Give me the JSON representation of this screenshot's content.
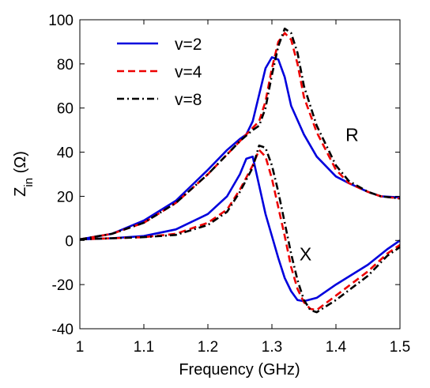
{
  "chart_data": {
    "type": "line",
    "xlabel": "Frequency (GHz)",
    "ylabel_main": "Z",
    "ylabel_sub": "in",
    "ylabel_unit": " (Ω)",
    "xlim": [
      1,
      1.5
    ],
    "ylim": [
      -40,
      100
    ],
    "xticks": [
      1,
      1.1,
      1.2,
      1.3,
      1.4,
      1.5
    ],
    "xtick_labels": [
      "1",
      "1.1",
      "1.2",
      "1.3",
      "1.4",
      "1.5"
    ],
    "yticks": [
      -40,
      -20,
      0,
      20,
      40,
      60,
      80,
      100
    ],
    "ytick_labels": [
      "-40",
      "-20",
      "0",
      "20",
      "40",
      "60",
      "80",
      "100"
    ],
    "grid": false,
    "legend_position": "top-left",
    "annotations": [
      {
        "text": "R",
        "x": 1.415,
        "y": 45
      },
      {
        "text": "X",
        "x": 1.343,
        "y": -9
      }
    ],
    "series": [
      {
        "name": "v=2",
        "color": "#0000dd",
        "dash": "solid",
        "R": [
          [
            1.0,
            0.5
          ],
          [
            1.05,
            3
          ],
          [
            1.1,
            9
          ],
          [
            1.15,
            18
          ],
          [
            1.2,
            32
          ],
          [
            1.23,
            41
          ],
          [
            1.25,
            46
          ],
          [
            1.26,
            48
          ],
          [
            1.27,
            54
          ],
          [
            1.28,
            66
          ],
          [
            1.29,
            78
          ],
          [
            1.3,
            83
          ],
          [
            1.31,
            82
          ],
          [
            1.32,
            74
          ],
          [
            1.33,
            61
          ],
          [
            1.35,
            48
          ],
          [
            1.37,
            38
          ],
          [
            1.4,
            29
          ],
          [
            1.42,
            26
          ],
          [
            1.45,
            22
          ],
          [
            1.47,
            20
          ],
          [
            1.5,
            19.5
          ]
        ],
        "X": [
          [
            1.0,
            0.5
          ],
          [
            1.05,
            1
          ],
          [
            1.1,
            2
          ],
          [
            1.15,
            5
          ],
          [
            1.2,
            12
          ],
          [
            1.23,
            20
          ],
          [
            1.25,
            30
          ],
          [
            1.26,
            37
          ],
          [
            1.27,
            38
          ],
          [
            1.28,
            25
          ],
          [
            1.29,
            12
          ],
          [
            1.3,
            2
          ],
          [
            1.31,
            -8
          ],
          [
            1.32,
            -17
          ],
          [
            1.33,
            -23
          ],
          [
            1.34,
            -27
          ],
          [
            1.35,
            -27.5
          ],
          [
            1.37,
            -26
          ],
          [
            1.4,
            -20
          ],
          [
            1.45,
            -11
          ],
          [
            1.48,
            -4
          ],
          [
            1.5,
            0
          ]
        ]
      },
      {
        "name": "v=4",
        "color": "#ee0000",
        "dash": "dashed",
        "R": [
          [
            1.0,
            0.5
          ],
          [
            1.05,
            3
          ],
          [
            1.1,
            8
          ],
          [
            1.15,
            17
          ],
          [
            1.2,
            30
          ],
          [
            1.23,
            39
          ],
          [
            1.25,
            45
          ],
          [
            1.27,
            51
          ],
          [
            1.28,
            54
          ],
          [
            1.29,
            63
          ],
          [
            1.3,
            78
          ],
          [
            1.31,
            90
          ],
          [
            1.32,
            94
          ],
          [
            1.33,
            91
          ],
          [
            1.34,
            80
          ],
          [
            1.35,
            65
          ],
          [
            1.37,
            49
          ],
          [
            1.4,
            32
          ],
          [
            1.42,
            26
          ],
          [
            1.45,
            22
          ],
          [
            1.47,
            20
          ],
          [
            1.5,
            19
          ]
        ],
        "X": [
          [
            1.0,
            0.5
          ],
          [
            1.05,
            1
          ],
          [
            1.1,
            1.5
          ],
          [
            1.15,
            3
          ],
          [
            1.2,
            8
          ],
          [
            1.23,
            14
          ],
          [
            1.25,
            23
          ],
          [
            1.27,
            34
          ],
          [
            1.28,
            41
          ],
          [
            1.29,
            38
          ],
          [
            1.3,
            28
          ],
          [
            1.31,
            15
          ],
          [
            1.32,
            2
          ],
          [
            1.33,
            -12
          ],
          [
            1.34,
            -22
          ],
          [
            1.35,
            -28
          ],
          [
            1.36,
            -31
          ],
          [
            1.37,
            -31.5
          ],
          [
            1.4,
            -25
          ],
          [
            1.45,
            -14
          ],
          [
            1.48,
            -6
          ],
          [
            1.5,
            -2
          ]
        ]
      },
      {
        "name": "v=8",
        "color": "#000000",
        "dash": "dashdot",
        "R": [
          [
            1.0,
            0.5
          ],
          [
            1.05,
            3
          ],
          [
            1.1,
            8
          ],
          [
            1.15,
            17
          ],
          [
            1.2,
            30
          ],
          [
            1.23,
            39
          ],
          [
            1.25,
            45
          ],
          [
            1.27,
            50
          ],
          [
            1.28,
            52
          ],
          [
            1.29,
            60
          ],
          [
            1.3,
            75
          ],
          [
            1.31,
            88
          ],
          [
            1.32,
            96
          ],
          [
            1.33,
            94
          ],
          [
            1.34,
            85
          ],
          [
            1.35,
            70
          ],
          [
            1.37,
            52
          ],
          [
            1.4,
            34
          ],
          [
            1.42,
            27
          ],
          [
            1.45,
            22
          ],
          [
            1.47,
            20
          ],
          [
            1.5,
            19
          ]
        ],
        "X": [
          [
            1.0,
            0.5
          ],
          [
            1.05,
            1
          ],
          [
            1.1,
            1.5
          ],
          [
            1.15,
            2.5
          ],
          [
            1.2,
            7
          ],
          [
            1.23,
            13
          ],
          [
            1.25,
            22
          ],
          [
            1.27,
            33
          ],
          [
            1.28,
            43
          ],
          [
            1.29,
            42
          ],
          [
            1.3,
            34
          ],
          [
            1.31,
            22
          ],
          [
            1.32,
            8
          ],
          [
            1.33,
            -6
          ],
          [
            1.34,
            -18
          ],
          [
            1.35,
            -27
          ],
          [
            1.36,
            -31.5
          ],
          [
            1.37,
            -32.5
          ],
          [
            1.4,
            -27
          ],
          [
            1.45,
            -16
          ],
          [
            1.48,
            -7
          ],
          [
            1.5,
            -3
          ]
        ]
      }
    ]
  }
}
